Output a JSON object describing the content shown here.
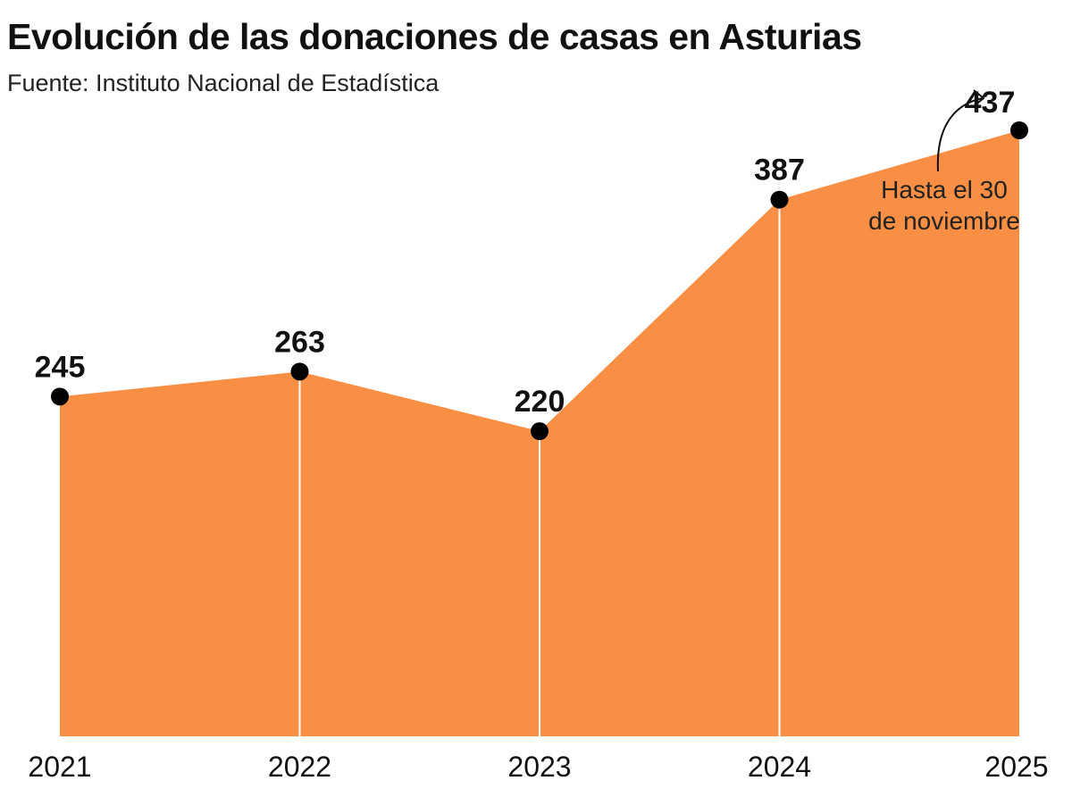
{
  "title": "Evolución de las donaciones de casas en Asturias",
  "subtitle": "Fuente: Instituto Nacional de Estadística",
  "chart_data": {
    "type": "area",
    "title": "Evolución de las donaciones de casas en Asturias",
    "subtitle": "Fuente: Instituto Nacional de Estadística",
    "categories": [
      "2021",
      "2022",
      "2023",
      "2024",
      "2025"
    ],
    "values": [
      245,
      263,
      220,
      387,
      437
    ],
    "data_labels": [
      "245",
      "263",
      "220",
      "387",
      "437"
    ],
    "ylim": [
      0,
      437
    ],
    "grid": false,
    "annotation": {
      "target": "2025",
      "lines": [
        "Hasta el 30",
        "de noviembre"
      ]
    },
    "colors": {
      "fill": "#F98F45",
      "point": "#000000",
      "divider": "#FFFFFF"
    }
  }
}
